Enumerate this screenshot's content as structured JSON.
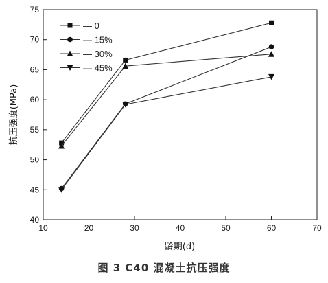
{
  "chart_data": {
    "type": "line",
    "caption": "图 3 C40 混凝土抗压强度",
    "xlabel": "龄期(d)",
    "ylabel": "抗压强度(MPa)",
    "xlim": [
      10,
      70
    ],
    "ylim": [
      40,
      75
    ],
    "xticks": [
      10,
      20,
      30,
      40,
      50,
      60,
      70
    ],
    "yticks": [
      40,
      45,
      50,
      55,
      60,
      65,
      70,
      75
    ],
    "x": [
      14,
      28,
      60
    ],
    "legend_position": "top-left",
    "series": [
      {
        "name": "0",
        "marker": "square",
        "values": [
          52.8,
          66.6,
          72.8
        ]
      },
      {
        "name": "15%",
        "marker": "circle",
        "values": [
          45.2,
          59.3,
          68.8
        ]
      },
      {
        "name": "30%",
        "marker": "triangle-up",
        "values": [
          52.3,
          65.6,
          67.6
        ]
      },
      {
        "name": "45%",
        "marker": "triangle-down",
        "values": [
          45.0,
          59.2,
          63.8
        ]
      }
    ],
    "line_color": "#333333",
    "marker_color": "#111111"
  }
}
